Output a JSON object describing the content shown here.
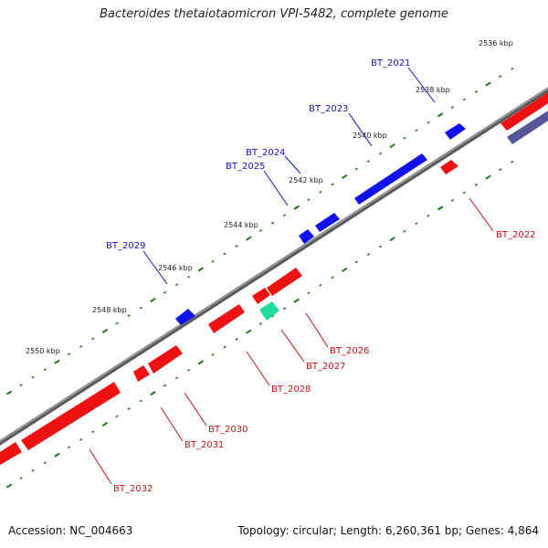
{
  "title": "Bacteroides thetaiotaomicron VPI-5482, complete genome",
  "footer": {
    "accession": "Accession: NC_004663",
    "summary": "Topology: circular; Length: 6,260,361 bp; Genes: 4,864"
  },
  "colors": {
    "forward": "#1111ee",
    "reverse": "#ee1111",
    "rna": "#22dd99",
    "other": "#555599",
    "backbone": "#888888",
    "tick": "#1a7a1a",
    "forward_label": "#1111cc",
    "reverse_label": "#cc1111"
  },
  "scale": {
    "labels": [
      "2536 kbp",
      "2538 kbp",
      "2540 kbp",
      "2542 kbp",
      "2544 kbp",
      "2546 kbp",
      "2548 kbp",
      "2550 kbp"
    ]
  },
  "genes": {
    "forward": [
      "BT_2021",
      "BT_2023",
      "BT_2024",
      "BT_2025",
      "BT_2029"
    ],
    "reverse": [
      "BT_2022",
      "BT_2026",
      "BT_2027",
      "BT_2028",
      "BT_2030",
      "BT_2031",
      "BT_2032"
    ]
  }
}
